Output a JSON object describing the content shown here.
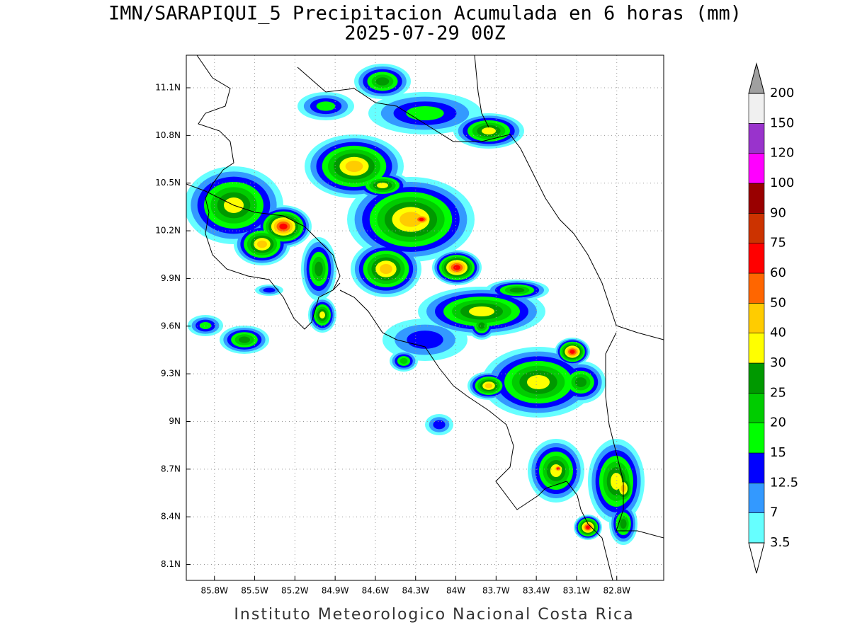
{
  "header": {
    "title": "IMN/SARAPIQUI_5 Precipitacion Acumulada en 6 horas (mm)",
    "subtitle": "2025-07-29 00Z"
  },
  "map": {
    "lon_range": [
      -86.01,
      -82.45
    ],
    "lat_range": [
      8.0,
      11.305
    ],
    "lon_ticks": [
      {
        "value": -85.8,
        "label": "85.8W"
      },
      {
        "value": -85.5,
        "label": "85.5W"
      },
      {
        "value": -85.2,
        "label": "85.2W"
      },
      {
        "value": -84.9,
        "label": "84.9W"
      },
      {
        "value": -84.6,
        "label": "84.6W"
      },
      {
        "value": -84.3,
        "label": "84.3W"
      },
      {
        "value": -84.0,
        "label": "84W"
      },
      {
        "value": -83.7,
        "label": "83.7W"
      },
      {
        "value": -83.4,
        "label": "83.4W"
      },
      {
        "value": -83.1,
        "label": "83.1W"
      },
      {
        "value": -82.8,
        "label": "82.8W"
      }
    ],
    "lat_ticks": [
      {
        "value": 8.1,
        "label": "8.1N"
      },
      {
        "value": 8.4,
        "label": "8.4N"
      },
      {
        "value": 8.7,
        "label": "8.7N"
      },
      {
        "value": 9.0,
        "label": "9N"
      },
      {
        "value": 9.3,
        "label": "9.3N"
      },
      {
        "value": 9.6,
        "label": "9.6N"
      },
      {
        "value": 9.9,
        "label": "9.9N"
      },
      {
        "value": 10.2,
        "label": "10.2N"
      },
      {
        "value": 10.5,
        "label": "10.5N"
      },
      {
        "value": 10.8,
        "label": "10.8N"
      },
      {
        "value": 11.1,
        "label": "11.1N"
      }
    ],
    "grid": true
  },
  "colorbar": {
    "levels": [
      3.5,
      7,
      12.5,
      15,
      20,
      25,
      30,
      40,
      50,
      60,
      75,
      90,
      100,
      120,
      150,
      200
    ],
    "colors": [
      "#66ffff",
      "#3399ff",
      "#0000ff",
      "#00ff00",
      "#00cc00",
      "#009900",
      "#ffff00",
      "#ffcc00",
      "#ff6600",
      "#ff0000",
      "#cc3300",
      "#990000",
      "#ff00ff",
      "#9933cc",
      "#f0f0f0"
    ],
    "under_color": "#ffffff",
    "over_color": "#a0a0a0"
  },
  "footer": "Instituto Meteorologico Nacional Costa Rica"
}
